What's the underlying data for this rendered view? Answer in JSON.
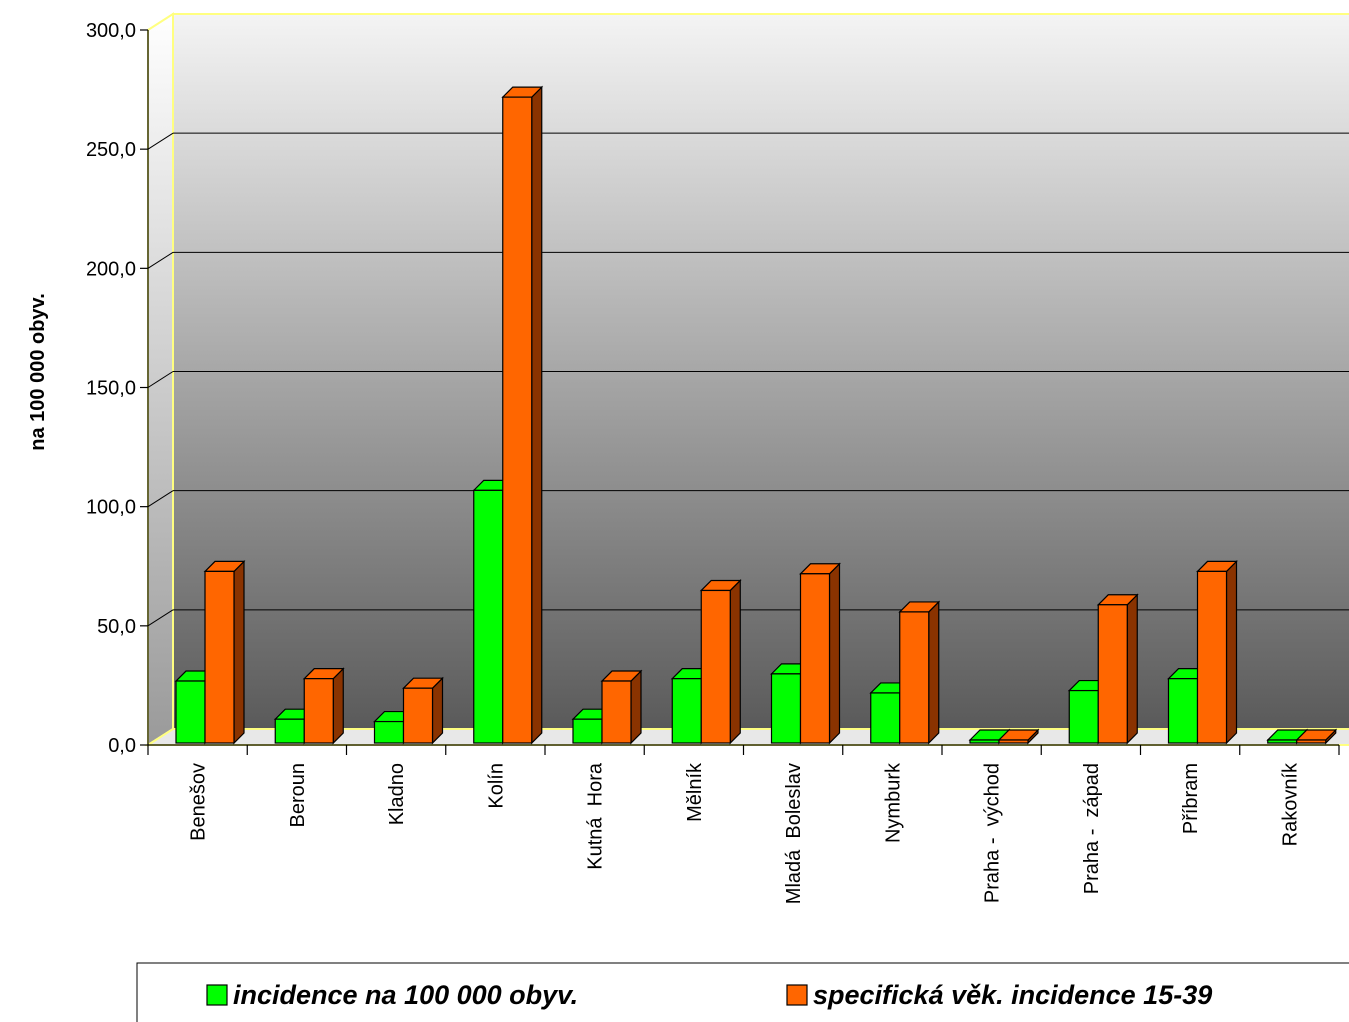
{
  "chart_data": {
    "type": "bar",
    "title": "",
    "xlabel": "",
    "ylabel": "na 100 000 obyv.",
    "ylim": [
      0,
      300
    ],
    "yticks": [
      "0,0",
      "50,0",
      "100,0",
      "150,0",
      "200,0",
      "250,0",
      "300,0"
    ],
    "ytick_values": [
      0,
      50,
      100,
      150,
      200,
      250,
      300
    ],
    "grid": true,
    "legend_position": "bottom",
    "categories": [
      "Benešov",
      "Beroun",
      "Kladno",
      "Kolín",
      "Kutná  Hora",
      "Mělník",
      "Mladá  Boleslav",
      "Nymburk",
      "Praha -  východ",
      "Praha -  západ",
      "Příbram",
      "Rakovník"
    ],
    "series": [
      {
        "name": "incidence na 100 000 obyv.",
        "color": "#00ff00",
        "side_color": "#008000",
        "values": [
          26,
          10,
          9,
          106,
          10,
          27,
          29,
          21,
          0,
          22,
          27,
          0
        ]
      },
      {
        "name": "specifická věk. incidence 15-39",
        "color": "#ff6600",
        "side_color": "#8a3300",
        "values": [
          72,
          27,
          23,
          271,
          26,
          64,
          71,
          55,
          0,
          58,
          72,
          0
        ]
      }
    ]
  }
}
